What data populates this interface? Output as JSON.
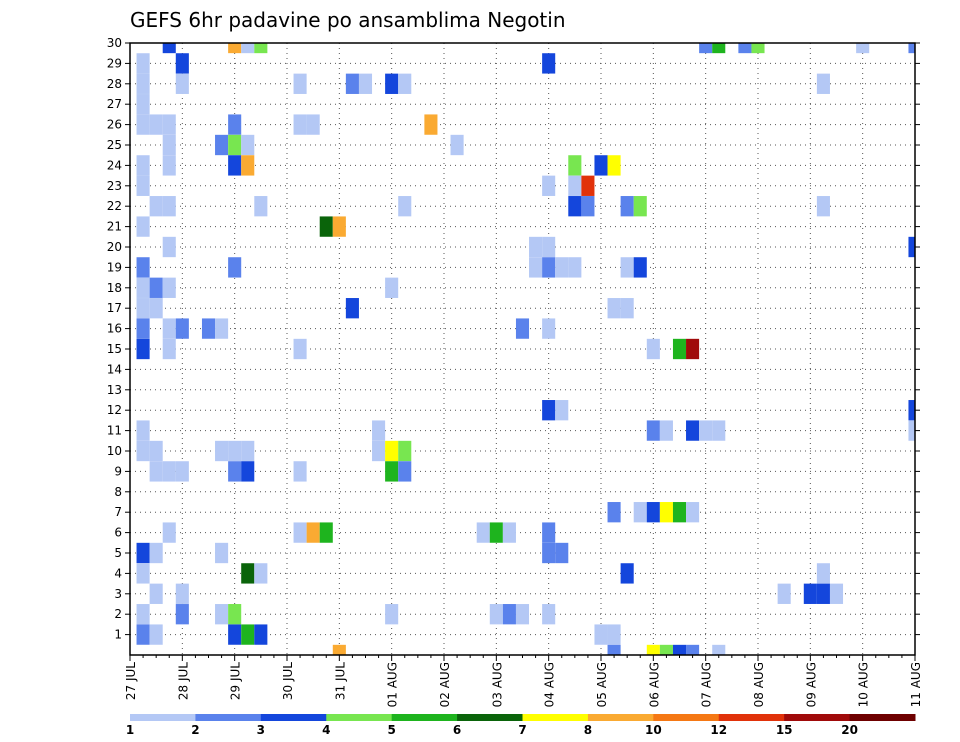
{
  "chart_data": {
    "type": "heatmap",
    "title": "GEFS 6hr padavine po ansamblima Negotin",
    "xlabel": "",
    "ylabel": "",
    "x_tick_labels": [
      "27 JUL",
      "28 JUL",
      "29 JUL",
      "30 JUL",
      "31 JUL",
      "01 AUG",
      "02 AUG",
      "03 AUG",
      "04 AUG",
      "05 AUG",
      "06 AUG",
      "07 AUG",
      "08 AUG",
      "09 AUG",
      "10 AUG",
      "11 AUG"
    ],
    "y_tick_labels": [
      "1",
      "2",
      "3",
      "4",
      "5",
      "6",
      "7",
      "8",
      "9",
      "10",
      "11",
      "12",
      "13",
      "14",
      "15",
      "16",
      "17",
      "18",
      "19",
      "20",
      "21",
      "22",
      "23",
      "24",
      "25",
      "26",
      "27",
      "28",
      "29",
      "30"
    ],
    "x_unit": "6-hour step starting 27 JUL",
    "x_range": [
      0,
      60
    ],
    "y_range": [
      0,
      30
    ],
    "grid": true,
    "colorbar": {
      "labels": [
        "1",
        "2",
        "3",
        "4",
        "5",
        "6",
        "7",
        "8",
        "10",
        "12",
        "15",
        "20"
      ],
      "colors": [
        "#b4c8f5",
        "#5a82ec",
        "#1446dc",
        "#78e650",
        "#1eb41e",
        "#0a640a",
        "#ffff00",
        "#faaa32",
        "#f57814",
        "#e1320a",
        "#a00a0a",
        "#6e0000"
      ]
    },
    "cells": [
      [
        3,
        30,
        3
      ],
      [
        8,
        30,
        8
      ],
      [
        9,
        30,
        1
      ],
      [
        10,
        30,
        4
      ],
      [
        44,
        30,
        2
      ],
      [
        45,
        30,
        5
      ],
      [
        47,
        30,
        2
      ],
      [
        48,
        30,
        4
      ],
      [
        56,
        30,
        1
      ],
      [
        60,
        30,
        2
      ],
      [
        1,
        29,
        1
      ],
      [
        4,
        29,
        3
      ],
      [
        32,
        29,
        3
      ],
      [
        1,
        28,
        1
      ],
      [
        4,
        28,
        1
      ],
      [
        13,
        28,
        1
      ],
      [
        17,
        28,
        2
      ],
      [
        18,
        28,
        1
      ],
      [
        20,
        28,
        3
      ],
      [
        21,
        28,
        1
      ],
      [
        53,
        28,
        1
      ],
      [
        1,
        27,
        1
      ],
      [
        1,
        26,
        1
      ],
      [
        2,
        26,
        1
      ],
      [
        3,
        26,
        1
      ],
      [
        8,
        26,
        2
      ],
      [
        13,
        26,
        1
      ],
      [
        14,
        26,
        1
      ],
      [
        23,
        26,
        8
      ],
      [
        3,
        25,
        1
      ],
      [
        7,
        25,
        2
      ],
      [
        8,
        25,
        4
      ],
      [
        9,
        25,
        1
      ],
      [
        25,
        25,
        1
      ],
      [
        1,
        24,
        1
      ],
      [
        3,
        24,
        1
      ],
      [
        8,
        24,
        3
      ],
      [
        9,
        24,
        8
      ],
      [
        34,
        24,
        4
      ],
      [
        36,
        24,
        3
      ],
      [
        37,
        24,
        7
      ],
      [
        1,
        23,
        1
      ],
      [
        32,
        23,
        1
      ],
      [
        34,
        23,
        1
      ],
      [
        35,
        23,
        10
      ],
      [
        2,
        22,
        1
      ],
      [
        3,
        22,
        1
      ],
      [
        10,
        22,
        1
      ],
      [
        21,
        22,
        1
      ],
      [
        34,
        22,
        3
      ],
      [
        35,
        22,
        2
      ],
      [
        38,
        22,
        2
      ],
      [
        39,
        22,
        4
      ],
      [
        53,
        22,
        1
      ],
      [
        1,
        21,
        1
      ],
      [
        15,
        21,
        6
      ],
      [
        16,
        21,
        8
      ],
      [
        3,
        20,
        1
      ],
      [
        31,
        20,
        1
      ],
      [
        32,
        20,
        1
      ],
      [
        60,
        20,
        3
      ],
      [
        1,
        19,
        2
      ],
      [
        8,
        19,
        2
      ],
      [
        31,
        19,
        1
      ],
      [
        32,
        19,
        2
      ],
      [
        33,
        19,
        1
      ],
      [
        34,
        19,
        1
      ],
      [
        38,
        19,
        1
      ],
      [
        39,
        19,
        3
      ],
      [
        1,
        18,
        1
      ],
      [
        2,
        18,
        2
      ],
      [
        3,
        18,
        1
      ],
      [
        20,
        18,
        1
      ],
      [
        1,
        17,
        1
      ],
      [
        2,
        17,
        1
      ],
      [
        17,
        17,
        3
      ],
      [
        37,
        17,
        1
      ],
      [
        38,
        17,
        1
      ],
      [
        1,
        16,
        2
      ],
      [
        3,
        16,
        1
      ],
      [
        4,
        16,
        2
      ],
      [
        6,
        16,
        2
      ],
      [
        7,
        16,
        1
      ],
      [
        30,
        16,
        2
      ],
      [
        32,
        16,
        1
      ],
      [
        1,
        15,
        3
      ],
      [
        3,
        15,
        1
      ],
      [
        13,
        15,
        1
      ],
      [
        40,
        15,
        1
      ],
      [
        42,
        15,
        5
      ],
      [
        43,
        15,
        11
      ],
      [
        32,
        12,
        3
      ],
      [
        33,
        12,
        1
      ],
      [
        60,
        12,
        3
      ],
      [
        1,
        11,
        1
      ],
      [
        19,
        11,
        1
      ],
      [
        40,
        11,
        2
      ],
      [
        41,
        11,
        1
      ],
      [
        43,
        11,
        3
      ],
      [
        44,
        11,
        1
      ],
      [
        45,
        11,
        1
      ],
      [
        60,
        11,
        1
      ],
      [
        1,
        10,
        1
      ],
      [
        2,
        10,
        1
      ],
      [
        7,
        10,
        1
      ],
      [
        8,
        10,
        1
      ],
      [
        9,
        10,
        1
      ],
      [
        19,
        10,
        1
      ],
      [
        20,
        10,
        7
      ],
      [
        21,
        10,
        4
      ],
      [
        2,
        9,
        1
      ],
      [
        3,
        9,
        1
      ],
      [
        4,
        9,
        1
      ],
      [
        8,
        9,
        2
      ],
      [
        9,
        9,
        3
      ],
      [
        13,
        9,
        1
      ],
      [
        20,
        9,
        5
      ],
      [
        21,
        9,
        2
      ],
      [
        37,
        7,
        2
      ],
      [
        39,
        7,
        1
      ],
      [
        40,
        7,
        3
      ],
      [
        41,
        7,
        7
      ],
      [
        42,
        7,
        5
      ],
      [
        43,
        7,
        1
      ],
      [
        3,
        6,
        1
      ],
      [
        13,
        6,
        1
      ],
      [
        14,
        6,
        8
      ],
      [
        15,
        6,
        5
      ],
      [
        27,
        6,
        1
      ],
      [
        28,
        6,
        5
      ],
      [
        29,
        6,
        1
      ],
      [
        32,
        6,
        2
      ],
      [
        1,
        5,
        3
      ],
      [
        2,
        5,
        1
      ],
      [
        7,
        5,
        1
      ],
      [
        32,
        5,
        2
      ],
      [
        33,
        5,
        2
      ],
      [
        1,
        4,
        1
      ],
      [
        9,
        4,
        6
      ],
      [
        10,
        4,
        1
      ],
      [
        38,
        4,
        3
      ],
      [
        53,
        4,
        1
      ],
      [
        2,
        3,
        1
      ],
      [
        4,
        3,
        1
      ],
      [
        50,
        3,
        1
      ],
      [
        52,
        3,
        3
      ],
      [
        53,
        3,
        3
      ],
      [
        54,
        3,
        1
      ],
      [
        1,
        2,
        1
      ],
      [
        4,
        2,
        2
      ],
      [
        7,
        2,
        1
      ],
      [
        8,
        2,
        4
      ],
      [
        20,
        2,
        1
      ],
      [
        28,
        2,
        1
      ],
      [
        29,
        2,
        2
      ],
      [
        30,
        2,
        1
      ],
      [
        32,
        2,
        1
      ],
      [
        1,
        1,
        2
      ],
      [
        2,
        1,
        1
      ],
      [
        8,
        1,
        3
      ],
      [
        9,
        1,
        5
      ],
      [
        10,
        1,
        3
      ],
      [
        36,
        1,
        1
      ],
      [
        37,
        1,
        1
      ],
      [
        16,
        0,
        8
      ],
      [
        37,
        0,
        2
      ],
      [
        40,
        0,
        7
      ],
      [
        41,
        0,
        4
      ],
      [
        42,
        0,
        3
      ],
      [
        43,
        0,
        2
      ],
      [
        45,
        0,
        1
      ]
    ]
  }
}
